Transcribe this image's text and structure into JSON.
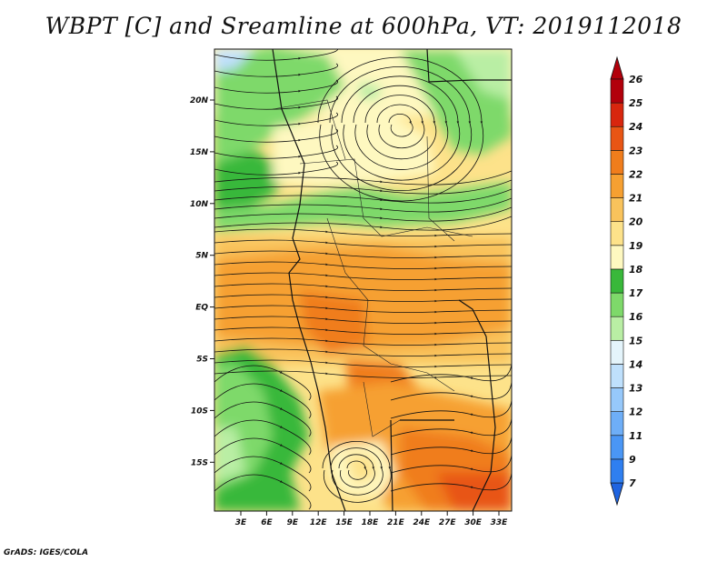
{
  "title": "WBPT [C] and Sreamline at 600hPa, VT: 2019112018",
  "credit": "GrADS: IGES/COLA",
  "map": {
    "lat_labels": [
      "20N",
      "15N",
      "10N",
      "5N",
      "EQ",
      "5S",
      "10S",
      "15S"
    ],
    "lon_labels": [
      "3E",
      "6E",
      "9E",
      "12E",
      "15E",
      "18E",
      "21E",
      "24E",
      "27E",
      "30E",
      "33E"
    ]
  },
  "colorbar": {
    "levels": [
      "7",
      "9",
      "11",
      "12",
      "13",
      "14",
      "15",
      "16",
      "17",
      "18",
      "19",
      "20",
      "21",
      "22",
      "23",
      "24",
      "25",
      "26"
    ],
    "colors": [
      "#1f64e0",
      "#2f7ff0",
      "#4a96f5",
      "#6eaef7",
      "#96c8fa",
      "#bfe0fc",
      "#e4f4fb",
      "#b9eea4",
      "#7ed96a",
      "#39b83a",
      "#fef8c0",
      "#fde28a",
      "#f9c35c",
      "#f6a031",
      "#f07d1c",
      "#e85514",
      "#d8260e",
      "#b2000b"
    ]
  }
}
